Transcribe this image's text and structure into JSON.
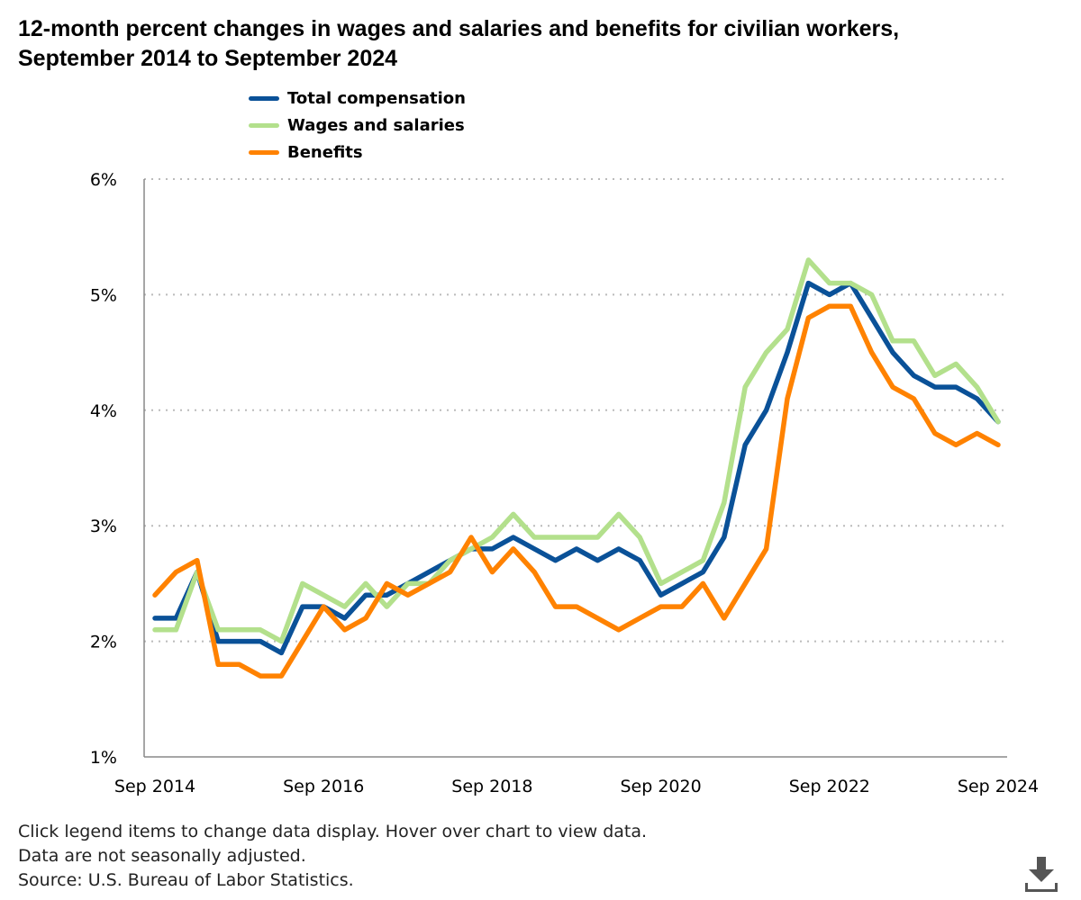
{
  "title": "12-month percent changes in wages and salaries and benefits for civilian workers, September 2014 to September 2024",
  "notes": [
    "Click legend items to change data display. Hover over chart to view data.",
    "Data are not seasonally adjusted.",
    "Source: U.S. Bureau of Labor Statistics."
  ],
  "download_icon": "download-icon",
  "chart_data": {
    "type": "line",
    "title": "12-month percent changes in wages and salaries and benefits for civilian workers, September 2014 to September 2024",
    "xlabel": "",
    "ylabel": "",
    "ylim": [
      1,
      6
    ],
    "yticks": [
      1,
      2,
      3,
      4,
      5,
      6
    ],
    "ytick_labels": [
      "1%",
      "2%",
      "3%",
      "4%",
      "5%",
      "6%"
    ],
    "x_start": "Sep 2014",
    "x_end": "Sep 2024",
    "x_frequency": "quarterly",
    "xtick_labels": [
      "Sep 2014",
      "Sep 2016",
      "Sep 2018",
      "Sep 2020",
      "Sep 2022",
      "Sep 2024"
    ],
    "grid": "horizontal dotted",
    "legend_placement": "top-left",
    "series": [
      {
        "name": "Total compensation",
        "color": "#0a5198",
        "values": [
          2.2,
          2.2,
          2.6,
          2.0,
          2.0,
          2.0,
          1.9,
          2.3,
          2.3,
          2.2,
          2.4,
          2.4,
          2.5,
          2.6,
          2.7,
          2.8,
          2.8,
          2.9,
          2.8,
          2.7,
          2.8,
          2.7,
          2.8,
          2.7,
          2.4,
          2.5,
          2.6,
          2.9,
          3.7,
          4.0,
          4.5,
          5.1,
          5.0,
          5.1,
          4.8,
          4.5,
          4.3,
          4.2,
          4.2,
          4.1,
          3.9
        ]
      },
      {
        "name": "Wages and salaries",
        "color": "#b3e08c",
        "values": [
          2.1,
          2.1,
          2.6,
          2.1,
          2.1,
          2.1,
          2.0,
          2.5,
          2.4,
          2.3,
          2.5,
          2.3,
          2.5,
          2.5,
          2.7,
          2.8,
          2.9,
          3.1,
          2.9,
          2.9,
          2.9,
          2.9,
          3.1,
          2.9,
          2.5,
          2.6,
          2.7,
          3.2,
          4.2,
          4.5,
          4.7,
          5.3,
          5.1,
          5.1,
          5.0,
          4.6,
          4.6,
          4.3,
          4.4,
          4.2,
          3.9
        ]
      },
      {
        "name": "Benefits",
        "color": "#ff8200",
        "values": [
          2.4,
          2.6,
          2.7,
          1.8,
          1.8,
          1.7,
          1.7,
          2.0,
          2.3,
          2.1,
          2.2,
          2.5,
          2.4,
          2.5,
          2.6,
          2.9,
          2.6,
          2.8,
          2.6,
          2.3,
          2.3,
          2.2,
          2.1,
          2.2,
          2.3,
          2.3,
          2.5,
          2.2,
          2.5,
          2.8,
          4.1,
          4.8,
          4.9,
          4.9,
          4.5,
          4.2,
          4.1,
          3.8,
          3.7,
          3.8,
          3.7
        ]
      }
    ]
  }
}
